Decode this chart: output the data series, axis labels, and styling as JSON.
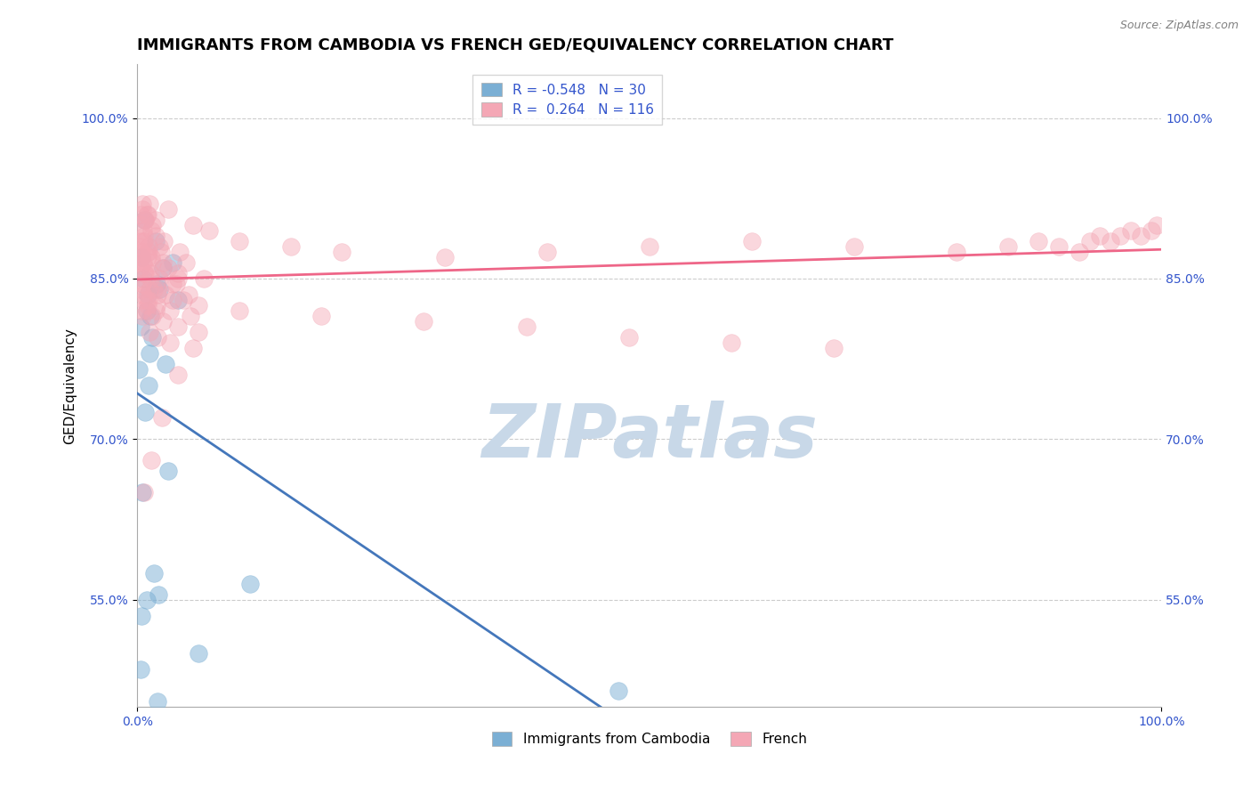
{
  "title": "IMMIGRANTS FROM CAMBODIA VS FRENCH GED/EQUIVALENCY CORRELATION CHART",
  "source": "Source: ZipAtlas.com",
  "ylabel": "GED/Equivalency",
  "xlim": [
    0.0,
    100.0
  ],
  "ylim": [
    45.0,
    105.0
  ],
  "yticks": [
    55.0,
    70.0,
    85.0,
    100.0
  ],
  "xtick_labels": [
    "0.0%",
    "100.0%"
  ],
  "ytick_labels": [
    "55.0%",
    "70.0%",
    "85.0%",
    "100.0%"
  ],
  "legend_r_blue": "-0.548",
  "legend_n_blue": "30",
  "legend_r_pink": "0.264",
  "legend_n_pink": "116",
  "blue_color": "#7BAFD4",
  "pink_color": "#F4A7B5",
  "blue_line_color": "#4477BB",
  "pink_line_color": "#EE6688",
  "watermark": "ZIPatlas",
  "watermark_color": "#C8D8E8",
  "title_fontsize": 13,
  "axis_label_fontsize": 11,
  "tick_fontsize": 10,
  "blue_points_x": [
    1.8,
    0.4,
    1.0,
    2.5,
    0.3,
    0.9,
    1.5,
    2.2,
    0.6,
    1.2,
    2.8,
    3.5,
    1.1,
    0.7,
    1.9,
    4.0,
    0.2,
    1.3,
    0.8,
    3.0,
    0.5,
    1.6,
    2.1,
    0.9,
    0.4,
    6.0,
    11.0,
    47.0,
    0.3,
    2.0
  ],
  "blue_points_y": [
    88.5,
    87.0,
    83.5,
    86.0,
    80.5,
    82.0,
    79.5,
    84.0,
    85.0,
    78.0,
    77.0,
    86.5,
    75.0,
    90.5,
    84.5,
    83.0,
    76.5,
    81.5,
    72.5,
    67.0,
    65.0,
    57.5,
    55.5,
    55.0,
    53.5,
    50.0,
    56.5,
    46.5,
    48.5,
    45.5
  ],
  "pink_points_x": [
    0.3,
    0.5,
    0.8,
    1.2,
    0.4,
    0.6,
    0.9,
    1.5,
    0.7,
    1.0,
    1.8,
    2.2,
    0.2,
    0.4,
    0.6,
    1.1,
    0.3,
    0.7,
    1.4,
    2.5,
    3.0,
    4.0,
    0.5,
    0.8,
    1.3,
    2.0,
    3.5,
    5.0,
    0.9,
    1.6,
    2.8,
    4.5,
    0.4,
    0.6,
    1.0,
    1.8,
    0.5,
    0.9,
    1.5,
    2.5,
    4.0,
    6.0,
    1.2,
    2.0,
    3.2,
    5.5,
    0.3,
    0.7,
    1.1,
    2.3,
    4.8,
    0.8,
    1.4,
    2.6,
    4.2,
    0.5,
    1.0,
    1.8,
    3.0,
    5.5,
    7.0,
    10.0,
    15.0,
    20.0,
    30.0,
    40.0,
    50.0,
    60.0,
    70.0,
    80.0,
    85.0,
    88.0,
    90.0,
    92.0,
    93.0,
    94.0,
    95.0,
    96.0,
    97.0,
    98.0,
    99.0,
    99.5,
    0.2,
    0.4,
    0.6,
    1.0,
    1.5,
    2.5,
    4.0,
    6.5,
    0.3,
    0.5,
    1.2,
    2.0,
    3.5,
    6.0,
    10.0,
    18.0,
    28.0,
    38.0,
    48.0,
    58.0,
    68.0,
    0.8,
    1.3,
    2.2,
    3.8,
    0.6,
    1.1,
    1.9,
    3.2,
    5.2,
    0.7,
    1.4,
    2.4,
    4.0,
    0.35
  ],
  "pink_points_y": [
    90.0,
    91.5,
    90.5,
    92.0,
    88.0,
    89.5,
    91.0,
    90.0,
    88.5,
    87.5,
    89.0,
    88.0,
    86.5,
    87.0,
    88.5,
    87.5,
    86.0,
    85.5,
    87.0,
    86.5,
    86.0,
    85.0,
    84.5,
    85.5,
    85.0,
    84.0,
    84.5,
    83.5,
    83.0,
    84.0,
    83.5,
    83.0,
    82.0,
    83.0,
    82.5,
    82.0,
    81.5,
    82.0,
    81.5,
    81.0,
    80.5,
    80.0,
    80.0,
    79.5,
    79.0,
    78.5,
    88.5,
    89.0,
    88.0,
    87.5,
    86.5,
    90.5,
    89.5,
    88.5,
    87.5,
    92.0,
    91.0,
    90.5,
    91.5,
    90.0,
    89.5,
    88.5,
    88.0,
    87.5,
    87.0,
    87.5,
    88.0,
    88.5,
    88.0,
    87.5,
    88.0,
    88.5,
    88.0,
    87.5,
    88.5,
    89.0,
    88.5,
    89.0,
    89.5,
    89.0,
    89.5,
    90.0,
    87.0,
    87.5,
    86.5,
    87.0,
    86.5,
    86.0,
    85.5,
    85.0,
    84.0,
    84.5,
    84.0,
    83.5,
    83.0,
    82.5,
    82.0,
    81.5,
    81.0,
    80.5,
    79.5,
    79.0,
    78.5,
    86.0,
    85.5,
    85.0,
    84.5,
    83.5,
    83.0,
    82.5,
    82.0,
    81.5,
    65.0,
    68.0,
    72.0,
    76.0,
    91.0
  ]
}
